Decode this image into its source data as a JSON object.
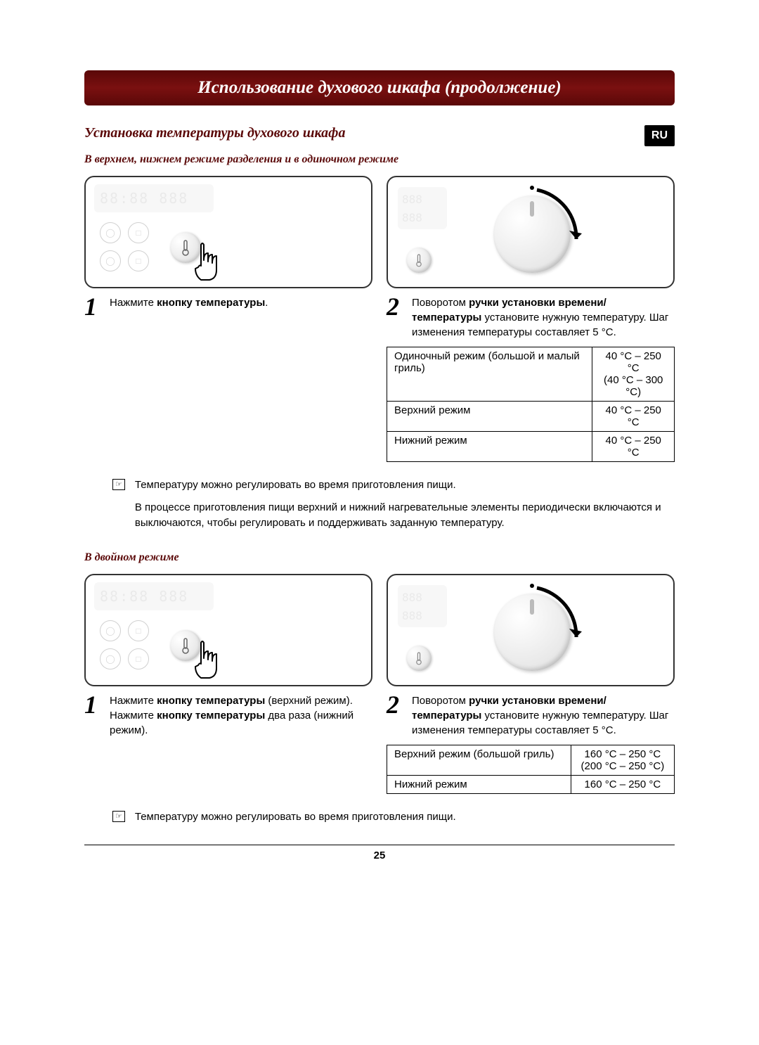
{
  "header": {
    "title": "Использование духового шкафа (продолжение)"
  },
  "lang_badge": "RU",
  "section": {
    "title": "Установка температуры духового шкафа"
  },
  "mode1": {
    "label": "В верхнем, нижнем режиме разделения и в одиночном режиме",
    "step1": {
      "num": "1",
      "prefix": "Нажмите ",
      "bold": "кнопку температуры",
      "suffix": "."
    },
    "step2": {
      "num": "2",
      "line1_prefix": "Поворотом ",
      "line1_bold": "ручки установки времени/температуры",
      "line1_suffix": " установите нужную температуру. Шаг изменения температуры составляет 5 °C."
    },
    "table": {
      "rows": [
        {
          "mode": "Одиночный режим (большой и малый гриль)",
          "range1": "40 °C – 250 °C",
          "range2": "(40 °C – 300 °C)"
        },
        {
          "mode": "Верхний режим",
          "range1": "40 °C – 250 °C",
          "range2": ""
        },
        {
          "mode": "Нижний режим",
          "range1": "40 °C – 250 °C",
          "range2": ""
        }
      ]
    },
    "note1": "Температуру можно регулировать во время приготовления пищи.",
    "note2": "В процессе приготовления пищи верхний и нижний нагревательные элементы периодически включаются и выключаются, чтобы регулировать и поддерживать заданную температуру."
  },
  "mode2": {
    "label": "В двойном режиме",
    "step1": {
      "num": "1",
      "l1_prefix": "Нажмите ",
      "l1_bold": "кнопку температуры",
      "l1_suffix": " (верхний режим).",
      "l2_prefix": "Нажмите ",
      "l2_bold": "кнопку температуры",
      "l2_suffix": " два раза (нижний режим)."
    },
    "step2": {
      "num": "2",
      "prefix": "Поворотом ",
      "bold": "ручки установки времени/температуры",
      "suffix": " установите нужную температуру. Шаг изменения температуры составляет 5 °C."
    },
    "table": {
      "rows": [
        {
          "mode": "Верхний режим (большой гриль)",
          "range1": "160 °C – 250 °C",
          "range2": "(200 °C – 250 °C)"
        },
        {
          "mode": "Нижний режим",
          "range1": "160 °C – 250 °C",
          "range2": ""
        }
      ]
    },
    "note": "Температуру можно регулировать во время приготовления пищи."
  },
  "page_number": "25",
  "colors": {
    "header_gradient_dark": "#5a0808",
    "header_gradient_mid": "#7a1010",
    "accent_text": "#5a0808",
    "badge_bg": "#000000",
    "badge_fg": "#ffffff",
    "border": "#000000"
  },
  "illus": {
    "digits_left": "88:88",
    "digits_right": "888",
    "mini_top": "888",
    "mini_bottom": "888"
  }
}
